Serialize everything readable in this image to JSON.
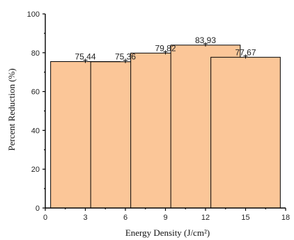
{
  "chart_data": {
    "type": "bar",
    "title": "",
    "xlabel": "Energy Density (J/cm²)",
    "ylabel": "Percent Reduction (%)",
    "x": [
      3,
      6,
      9,
      12,
      15
    ],
    "values": [
      75.44,
      75.36,
      79.82,
      83.93,
      77.67
    ],
    "value_labels": [
      "75,44",
      "75,36",
      "79,82",
      "83,93",
      "77,67"
    ],
    "xlim": [
      0,
      18
    ],
    "ylim": [
      0,
      100
    ],
    "x_ticks": [
      0,
      3,
      6,
      9,
      12,
      15,
      18
    ],
    "y_ticks": [
      0,
      20,
      40,
      60,
      80,
      100
    ],
    "bar_color": "#fbc698",
    "edge_color": "#000000",
    "grid": false,
    "legend": "none",
    "error_bars": true
  }
}
